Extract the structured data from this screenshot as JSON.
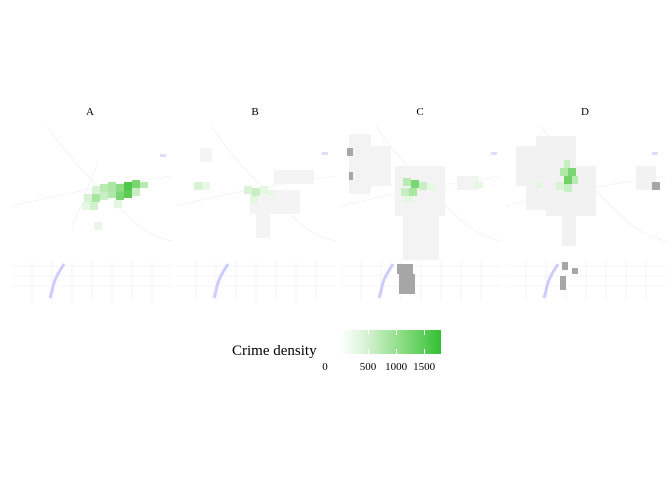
{
  "panels": [
    {
      "label": "A"
    },
    {
      "label": "B"
    },
    {
      "label": "C"
    },
    {
      "label": "D"
    }
  ],
  "legend": {
    "title": "Crime density",
    "ticks": [
      "0",
      "500",
      "1000",
      "1500"
    ],
    "range": [
      0,
      1800
    ],
    "low_color": "#ffffff",
    "high_color": "#33c033"
  },
  "colors": {
    "water": "#ccccff",
    "missing": "#a6a6a6",
    "density_high": "#33c033"
  }
}
